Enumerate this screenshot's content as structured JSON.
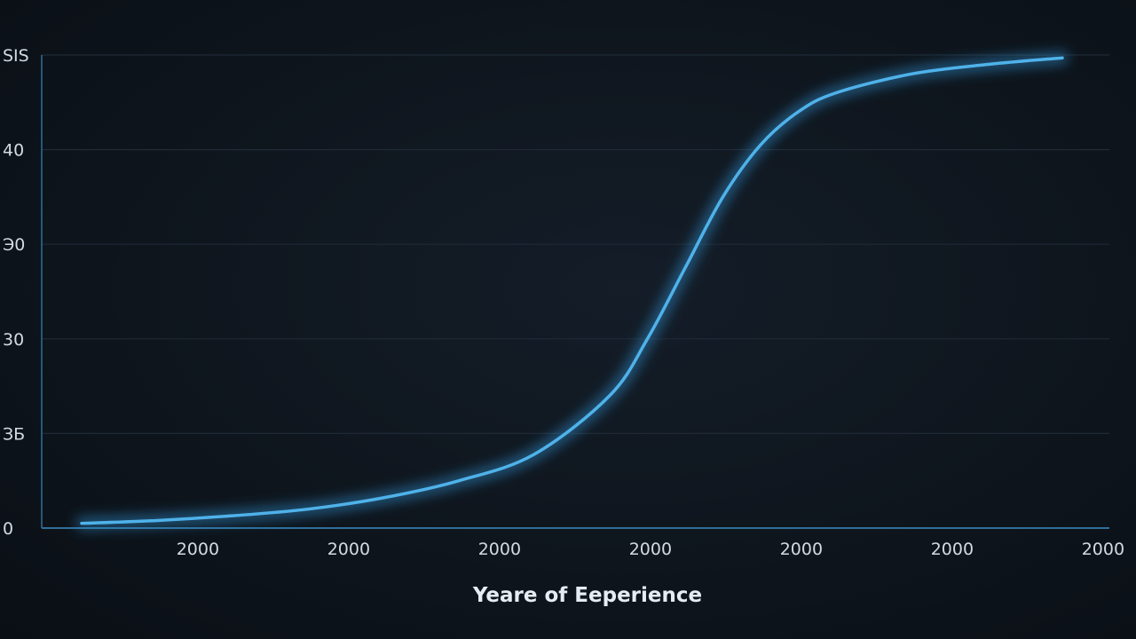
{
  "chart_data": {
    "type": "line",
    "title": "",
    "xlabel": "Yeare of Eeperience",
    "ylabel": "",
    "x_tick_labels": [
      "2000",
      "2000",
      "2000",
      "2000",
      "2000",
      "2000",
      "2000"
    ],
    "y_tick_labels": [
      "0",
      "ЗБ",
      "30",
      "Э0",
      "40",
      "SIS"
    ],
    "x_range": [
      0,
      7
    ],
    "y_range": [
      0,
      5
    ],
    "grid": true,
    "legend": "none",
    "colors": {
      "line": "#4fb2ea",
      "glow": "#2f8fd0",
      "grid": "#1f2a36",
      "axis": "#2f6f9a"
    },
    "series": [
      {
        "x": [
          0,
          0.5,
          1,
          1.5,
          2,
          2.5,
          3,
          3.5,
          3.75,
          4,
          4.25,
          4.5,
          4.75,
          5,
          5.5,
          6,
          6.5
        ],
        "y": [
          0.05,
          0.08,
          0.13,
          0.2,
          0.32,
          0.5,
          0.78,
          1.4,
          2.0,
          2.75,
          3.5,
          4.05,
          4.4,
          4.6,
          4.8,
          4.9,
          4.97
        ]
      }
    ]
  }
}
